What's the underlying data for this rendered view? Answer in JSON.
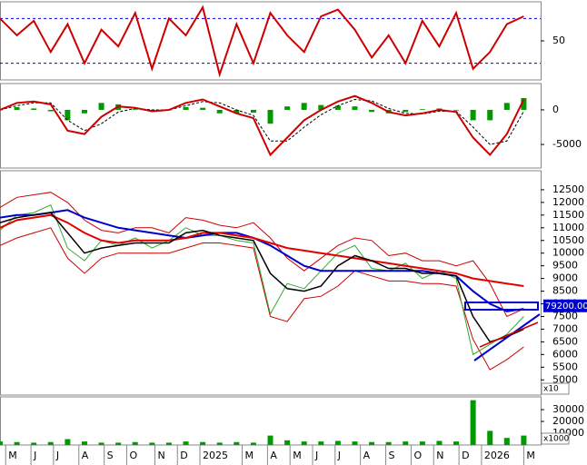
{
  "chart_data": {
    "type": "stock",
    "x": [
      0,
      3,
      6,
      9,
      12,
      15,
      18,
      21,
      24,
      27,
      30,
      33,
      36,
      39,
      42,
      45,
      48,
      51,
      54,
      57,
      60,
      63,
      66,
      69,
      72,
      75,
      78,
      81,
      84,
      87,
      90,
      93
    ],
    "xlim": [
      0,
      96
    ],
    "xticks": [
      {
        "value": 1,
        "label": "M"
      },
      {
        "value": 5.5,
        "label": "J"
      },
      {
        "value": 9.5,
        "label": "J"
      },
      {
        "value": 14,
        "label": "A"
      },
      {
        "value": 18.5,
        "label": "S"
      },
      {
        "value": 22.5,
        "label": "O"
      },
      {
        "value": 27.5,
        "label": "N"
      },
      {
        "value": 31.5,
        "label": "D"
      },
      {
        "value": 35.5,
        "label": "2025"
      },
      {
        "value": 43,
        "label": "M"
      },
      {
        "value": 47.5,
        "label": "A"
      },
      {
        "value": 51.5,
        "label": "M"
      },
      {
        "value": 55.5,
        "label": "J"
      },
      {
        "value": 59.5,
        "label": "J"
      },
      {
        "value": 64,
        "label": "A"
      },
      {
        "value": 68.5,
        "label": "S"
      },
      {
        "value": 73,
        "label": "O"
      },
      {
        "value": 77,
        "label": "N"
      },
      {
        "value": 81.5,
        "label": "D"
      },
      {
        "value": 85.5,
        "label": "2026"
      },
      {
        "value": 93,
        "label": "M"
      }
    ],
    "panels": [
      {
        "type": "line",
        "ylim": [
          15,
          85
        ],
        "yticks": [
          50
        ],
        "ref_lines": [
          30,
          70
        ],
        "ref_color": "#0000cc",
        "series": [
          {
            "kind": "line",
            "color": "#cc0000",
            "width": 2,
            "values": [
              70,
              55,
              68,
              40,
              65,
              30,
              60,
              45,
              75,
              25,
              70,
              55,
              80,
              20,
              65,
              30,
              75,
              55,
              40,
              72,
              78,
              60,
              35,
              55,
              30,
              68,
              45,
              75,
              25,
              40,
              65,
              72
            ]
          }
        ]
      },
      {
        "type": "line",
        "ylim": [
          -8400,
          3800
        ],
        "yticks": [
          0,
          -5000
        ],
        "series": [
          {
            "kind": "bar",
            "color": "#009900",
            "values": [
              0,
              400,
              200,
              -200,
              -1500,
              -500,
              1000,
              800,
              100,
              -200,
              0,
              400,
              300,
              -500,
              -500,
              -400,
              -2000,
              500,
              1000,
              700,
              600,
              500,
              -300,
              -500,
              -300,
              100,
              200,
              -100,
              -1500,
              -1500,
              1000,
              1700
            ]
          },
          {
            "kind": "line",
            "color": "#000000",
            "width": 1,
            "dash": true,
            "values": [
              0,
              600,
              1000,
              1000,
              -1500,
              -3000,
              -2000,
              -300,
              200,
              0,
              0,
              600,
              1200,
              1000,
              0,
              -800,
              -4500,
              -4500,
              -2500,
              -700,
              600,
              1500,
              1300,
              200,
              -500,
              -600,
              -200,
              -200,
              -2500,
              -5000,
              -4500,
              -200
            ]
          },
          {
            "kind": "line",
            "color": "#cc0000",
            "width": 2,
            "values": [
              0,
              1000,
              1200,
              800,
              -3000,
              -3500,
              -1000,
              500,
              300,
              -200,
              0,
              1000,
              1500,
              500,
              -500,
              -1200,
              -6500,
              -4000,
              -1500,
              0,
              1200,
              2000,
              1000,
              -300,
              -800,
              -500,
              0,
              -300,
              -4000,
              -6500,
              -3500,
              1500
            ]
          }
        ]
      },
      {
        "type": "line",
        "ylim": [
          4400,
          13250
        ],
        "yticks": [
          5000,
          5500,
          6000,
          6500,
          7000,
          7500,
          8000,
          8500,
          9000,
          9500,
          10000,
          10500,
          11000,
          11500,
          12000,
          12500
        ],
        "unit": "x10",
        "last_price": {
          "value": 7920,
          "label": "79200.00",
          "color": "#0000cc"
        },
        "series": [
          {
            "kind": "line",
            "color": "#cc0000",
            "width": 1,
            "values": [
              11800,
              12200,
              12300,
              12400,
              12000,
              11300,
              10900,
              10800,
              11000,
              11000,
              10800,
              11400,
              11300,
              11100,
              11000,
              11200,
              10600,
              9800,
              9300,
              9800,
              10300,
              10600,
              10500,
              9900,
              10000,
              9700,
              9700,
              9500,
              9700,
              8800,
              7500,
              7800
            ]
          },
          {
            "kind": "line",
            "color": "#cc0000",
            "width": 1,
            "values": [
              10300,
              10600,
              10800,
              11000,
              9800,
              9200,
              9800,
              10000,
              10000,
              10000,
              10000,
              10200,
              10400,
              10400,
              10300,
              10200,
              7500,
              7300,
              8200,
              8300,
              8700,
              9300,
              9100,
              8900,
              8900,
              8800,
              8800,
              8700,
              6600,
              5400,
              5800,
              6300
            ]
          },
          {
            "kind": "line",
            "color": "#33aa33",
            "width": 1,
            "values": [
              10900,
              11500,
              11600,
              11900,
              10200,
              9700,
              10500,
              10300,
              10600,
              10200,
              10500,
              11000,
              10700,
              10700,
              10500,
              10400,
              7600,
              8800,
              8600,
              9300,
              10000,
              10300,
              9400,
              9300,
              9600,
              9000,
              9300,
              9000,
              6000,
              6400,
              6800,
              7500
            ]
          },
          {
            "kind": "line",
            "color": "#0000cc",
            "width": 2,
            "values": [
              11400,
              11500,
              11500,
              11600,
              11700,
              11400,
              11200,
              11000,
              10900,
              10800,
              10700,
              10600,
              10700,
              10800,
              10800,
              10600,
              10300,
              9900,
              9500,
              9300,
              9300,
              9300,
              9300,
              9300,
              9300,
              9300,
              9200,
              9100,
              8500,
              8000,
              7700,
              7800
            ]
          },
          {
            "kind": "line",
            "color": "#e00000",
            "width": 2,
            "values": [
              11000,
              11300,
              11400,
              11500,
              11200,
              10800,
              10500,
              10400,
              10500,
              10500,
              10500,
              10600,
              10800,
              10800,
              10700,
              10600,
              10400,
              10200,
              10100,
              10000,
              9900,
              9800,
              9700,
              9600,
              9500,
              9400,
              9300,
              9200,
              9000,
              8900,
              8800,
              8700
            ]
          },
          {
            "kind": "line",
            "color": "#000000",
            "width": 1.5,
            "values": [
              11200,
              11400,
              11500,
              11600,
              10800,
              10000,
              10200,
              10300,
              10400,
              10400,
              10400,
              10800,
              10900,
              10700,
              10600,
              10500,
              9200,
              8600,
              8500,
              8700,
              9500,
              9900,
              9700,
              9400,
              9400,
              9200,
              9200,
              9100,
              7500,
              6500,
              6700,
              7000
            ]
          }
        ]
      },
      {
        "type": "bar",
        "ylim": [
          0,
          40800
        ],
        "yticks": [
          10000,
          20000,
          30000
        ],
        "unit": "x1000",
        "series": [
          {
            "kind": "bar",
            "color": "#009900",
            "values": [
              3000,
              2500,
              2000,
              2500,
              5000,
              3000,
              2000,
              2000,
              2500,
              2000,
              2000,
              3000,
              2500,
              2000,
              2500,
              2000,
              8000,
              4000,
              3000,
              3000,
              3500,
              3000,
              2500,
              2500,
              3000,
              3000,
              3500,
              3000,
              38000,
              12000,
              6000,
              8000
            ]
          }
        ]
      }
    ]
  }
}
